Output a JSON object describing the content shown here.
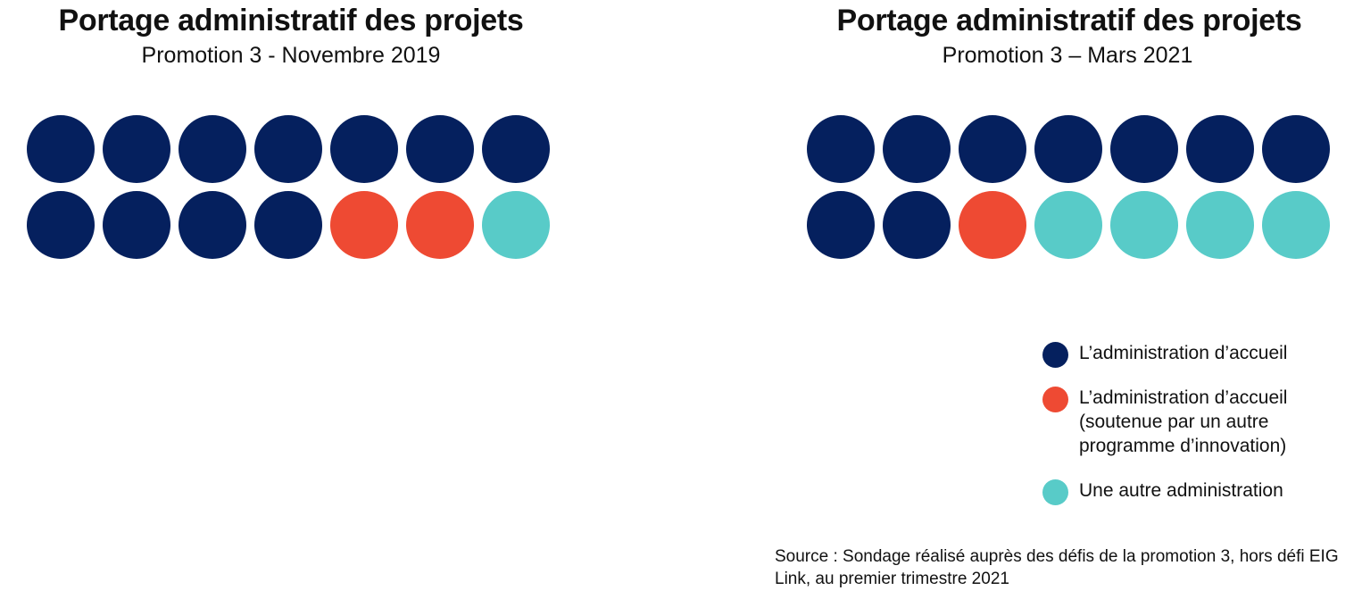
{
  "colors": {
    "accueil": "#05205e",
    "accueil_soutenue": "#ee4a33",
    "autre": "#58cbc8"
  },
  "legend": [
    {
      "key": "accueil",
      "label": "L’administration d’accueil"
    },
    {
      "key": "accueil_soutenue",
      "label": "L’administration d’accueil (soutenue par un autre programme d’innovation)"
    },
    {
      "key": "autre",
      "label": "Une autre administration"
    }
  ],
  "source": "Source : Sondage réalisé auprès des défis de la promotion 3, hors défi EIG Link, au premier trimestre 2021",
  "chart_data": [
    {
      "type": "waffle",
      "title": "Portage administratif des projets",
      "subtitle": "Promotion 3 - Novembre 2019",
      "columns": 7,
      "categories": [
        "L’administration d’accueil",
        "L’administration d’accueil (soutenue par un autre programme d’innovation)",
        "Une autre administration"
      ],
      "values": [
        11,
        2,
        1
      ],
      "cells": [
        "accueil",
        "accueil",
        "accueil",
        "accueil",
        "accueil",
        "accueil",
        "accueil",
        "accueil",
        "accueil",
        "accueil",
        "accueil",
        "accueil_soutenue",
        "accueil_soutenue",
        "autre"
      ]
    },
    {
      "type": "waffle",
      "title": "Portage administratif des projets",
      "subtitle": "Promotion 3 – Mars 2021",
      "columns": 7,
      "categories": [
        "L’administration d’accueil",
        "L’administration d’accueil (soutenue par un autre programme d’innovation)",
        "Une autre administration"
      ],
      "values": [
        9,
        1,
        4
      ],
      "cells": [
        "accueil",
        "accueil",
        "accueil",
        "accueil",
        "accueil",
        "accueil",
        "accueil",
        "accueil",
        "accueil",
        "accueil_soutenue",
        "autre",
        "autre",
        "autre",
        "autre"
      ]
    }
  ]
}
